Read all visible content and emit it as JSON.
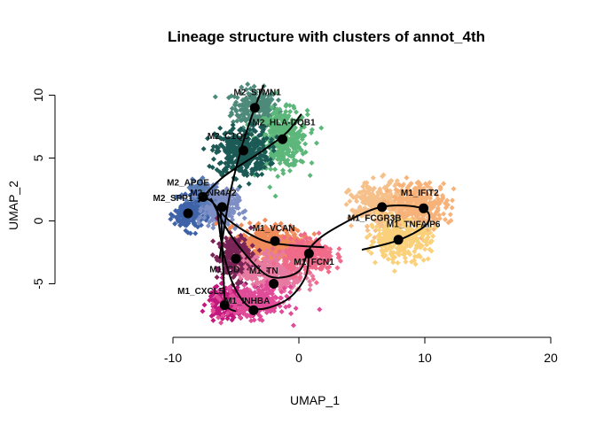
{
  "chart_data": {
    "type": "scatter",
    "title": "Lineage structure with clusters of annot_4th",
    "xlabel": "UMAP_1",
    "ylabel": "UMAP_2",
    "xlim": [
      -10,
      20
    ],
    "ylim": [
      -10,
      10
    ],
    "x_ticks": [
      -10,
      0,
      10,
      20
    ],
    "y_ticks": [
      -5,
      0,
      5,
      10
    ],
    "clusters": [
      {
        "name": "M2_STMN1",
        "x": -3.5,
        "y": 9.0,
        "color": "#4E8A7A",
        "sx": 1.2,
        "sy": 1.0,
        "n": 220
      },
      {
        "name": "M2_HLA-DQB1",
        "x": -1.3,
        "y": 6.5,
        "color": "#5DB77A",
        "sx": 1.3,
        "sy": 1.5,
        "n": 380
      },
      {
        "name": "M2_C1QC",
        "x": -4.5,
        "y": 5.5,
        "color": "#1C5A56",
        "sx": 1.4,
        "sy": 1.3,
        "n": 380
      },
      {
        "name": "M2_APOE",
        "x": -7.5,
        "y": 1.8,
        "color": "#5A7DB5",
        "sx": 0.8,
        "sy": 0.9,
        "n": 200
      },
      {
        "name": "M2_SPP1",
        "x": -8.8,
        "y": 0.5,
        "color": "#3F63A8",
        "sx": 0.7,
        "sy": 0.8,
        "n": 180
      },
      {
        "name": "M2_NR4A2",
        "x": -6.2,
        "y": 1.0,
        "color": "#7D8FC4",
        "sx": 0.9,
        "sy": 1.0,
        "n": 200
      },
      {
        "name": "M1_VCAN",
        "x": -2.0,
        "y": -1.8,
        "color": "#F08C5A",
        "sx": 1.8,
        "sy": 1.0,
        "n": 420
      },
      {
        "name": "M1_CD...",
        "x": -5.0,
        "y": -3.0,
        "color": "#7A2458",
        "sx": 1.0,
        "sy": 1.2,
        "n": 260
      },
      {
        "name": "M1_TN...",
        "x": -2.0,
        "y": -4.2,
        "color": "#E77AA0",
        "sx": 1.6,
        "sy": 1.0,
        "n": 320
      },
      {
        "name": "M1_FCN1",
        "x": 0.8,
        "y": -2.8,
        "color": "#F06A8A",
        "sx": 1.3,
        "sy": 0.9,
        "n": 280
      },
      {
        "name": "M1_CXCL5",
        "x": -5.8,
        "y": -6.5,
        "color": "#C2187E",
        "sx": 0.9,
        "sy": 0.8,
        "n": 220
      },
      {
        "name": "M1_INHBA",
        "x": -3.5,
        "y": -6.5,
        "color": "#E14C99",
        "sx": 1.6,
        "sy": 0.8,
        "n": 300
      },
      {
        "name": "M1_FCGR3B",
        "x": 6.5,
        "y": 1.2,
        "color": "#F6C08A",
        "sx": 1.6,
        "sy": 1.2,
        "n": 300
      },
      {
        "name": "M1_IFIT2",
        "x": 9.5,
        "y": 1.3,
        "color": "#F7B27A",
        "sx": 1.5,
        "sy": 1.2,
        "n": 300
      },
      {
        "name": "M1_TNFAIP6",
        "x": 8.0,
        "y": -1.5,
        "color": "#FAD07A",
        "sx": 1.6,
        "sy": 1.0,
        "n": 300
      }
    ],
    "labels": [
      {
        "text": "M2_STMN1",
        "x": -3.3,
        "y": 10.0
      },
      {
        "text": "M2_HLA-DQB1",
        "x": -1.2,
        "y": 7.6
      },
      {
        "text": "M2_C1QC",
        "x": -5.6,
        "y": 6.5
      },
      {
        "text": "M2_APOE",
        "x": -8.8,
        "y": 2.8
      },
      {
        "text": "M2_SPP1",
        "x": -10.0,
        "y": 1.6
      },
      {
        "text": "M2_NR4A2",
        "x": -6.8,
        "y": 2.0
      },
      {
        "text": "M1_VCAN",
        "x": -2.0,
        "y": -0.8
      },
      {
        "text": "M1_FCGR3B",
        "x": 6.0,
        "y": 0.0
      },
      {
        "text": "M1_IFIT2",
        "x": 9.6,
        "y": 2.0
      },
      {
        "text": "M1_TNFAIP6",
        "x": 9.1,
        "y": -0.5
      },
      {
        "text": "M1_FCN1",
        "x": 1.2,
        "y": -3.5
      },
      {
        "text": "M1_CD",
        "x": -5.9,
        "y": -4.1
      },
      {
        "text": "M1_TN",
        "x": -2.8,
        "y": -4.2
      },
      {
        "text": "M1_CXCL5",
        "x": -7.8,
        "y": -5.8
      },
      {
        "text": "M1_INHBA",
        "x": -4.1,
        "y": -6.6
      }
    ],
    "centroids": [
      {
        "x": -3.5,
        "y": 9.0
      },
      {
        "x": -1.3,
        "y": 6.5
      },
      {
        "x": -4.4,
        "y": 5.6
      },
      {
        "x": -7.6,
        "y": 1.9
      },
      {
        "x": -8.8,
        "y": 0.6
      },
      {
        "x": -6.1,
        "y": 1.1
      },
      {
        "x": -1.9,
        "y": -1.6
      },
      {
        "x": 6.6,
        "y": 1.1
      },
      {
        "x": 9.9,
        "y": 1.0
      },
      {
        "x": 7.9,
        "y": -1.5
      },
      {
        "x": 0.8,
        "y": -2.6
      },
      {
        "x": -5.0,
        "y": -3.0
      },
      {
        "x": -2.0,
        "y": -5.0
      },
      {
        "x": -5.9,
        "y": -6.7
      },
      {
        "x": -3.6,
        "y": -7.1
      }
    ],
    "lineages": [
      [
        [
          -6.3,
          -3.0
        ],
        [
          -5.5,
          2.0
        ],
        [
          -4.5,
          6.0
        ],
        [
          -3.5,
          9.0
        ],
        [
          -2.8,
          10.8
        ]
      ],
      [
        [
          -8.0,
          1.5
        ],
        [
          -6.0,
          3.5
        ],
        [
          -3.0,
          5.5
        ],
        [
          -1.0,
          7.0
        ],
        [
          0.2,
          8.5
        ]
      ],
      [
        [
          -8.0,
          1.8
        ],
        [
          -7.0,
          1.6
        ],
        [
          -5.5,
          0.0
        ],
        [
          -3.0,
          -1.5
        ],
        [
          -1.0,
          -1.9
        ],
        [
          2.0,
          -2.1
        ]
      ],
      [
        [
          -7.0,
          1.8
        ],
        [
          -5.5,
          -1.0
        ],
        [
          -3.5,
          -3.5
        ],
        [
          -2.0,
          -4.5
        ],
        [
          0.0,
          -4.0
        ],
        [
          1.0,
          -2.0
        ],
        [
          3.0,
          -0.5
        ],
        [
          6.5,
          1.1
        ],
        [
          9.8,
          1.0
        ],
        [
          10.2,
          -0.2
        ],
        [
          8.0,
          -1.5
        ],
        [
          5.0,
          -2.3
        ]
      ],
      [
        [
          -6.5,
          1.0
        ],
        [
          -6.0,
          -2.5
        ],
        [
          -5.0,
          -5.5
        ],
        [
          -3.5,
          -7.0
        ],
        [
          -1.0,
          -6.3
        ],
        [
          0.5,
          -4.5
        ],
        [
          0.8,
          -2.6
        ]
      ],
      [
        [
          -6.2,
          0.8
        ],
        [
          -6.0,
          -4.0
        ],
        [
          -5.8,
          -6.6
        ],
        [
          -5.0,
          -7.2
        ]
      ]
    ],
    "grid": false,
    "legend": "none"
  }
}
